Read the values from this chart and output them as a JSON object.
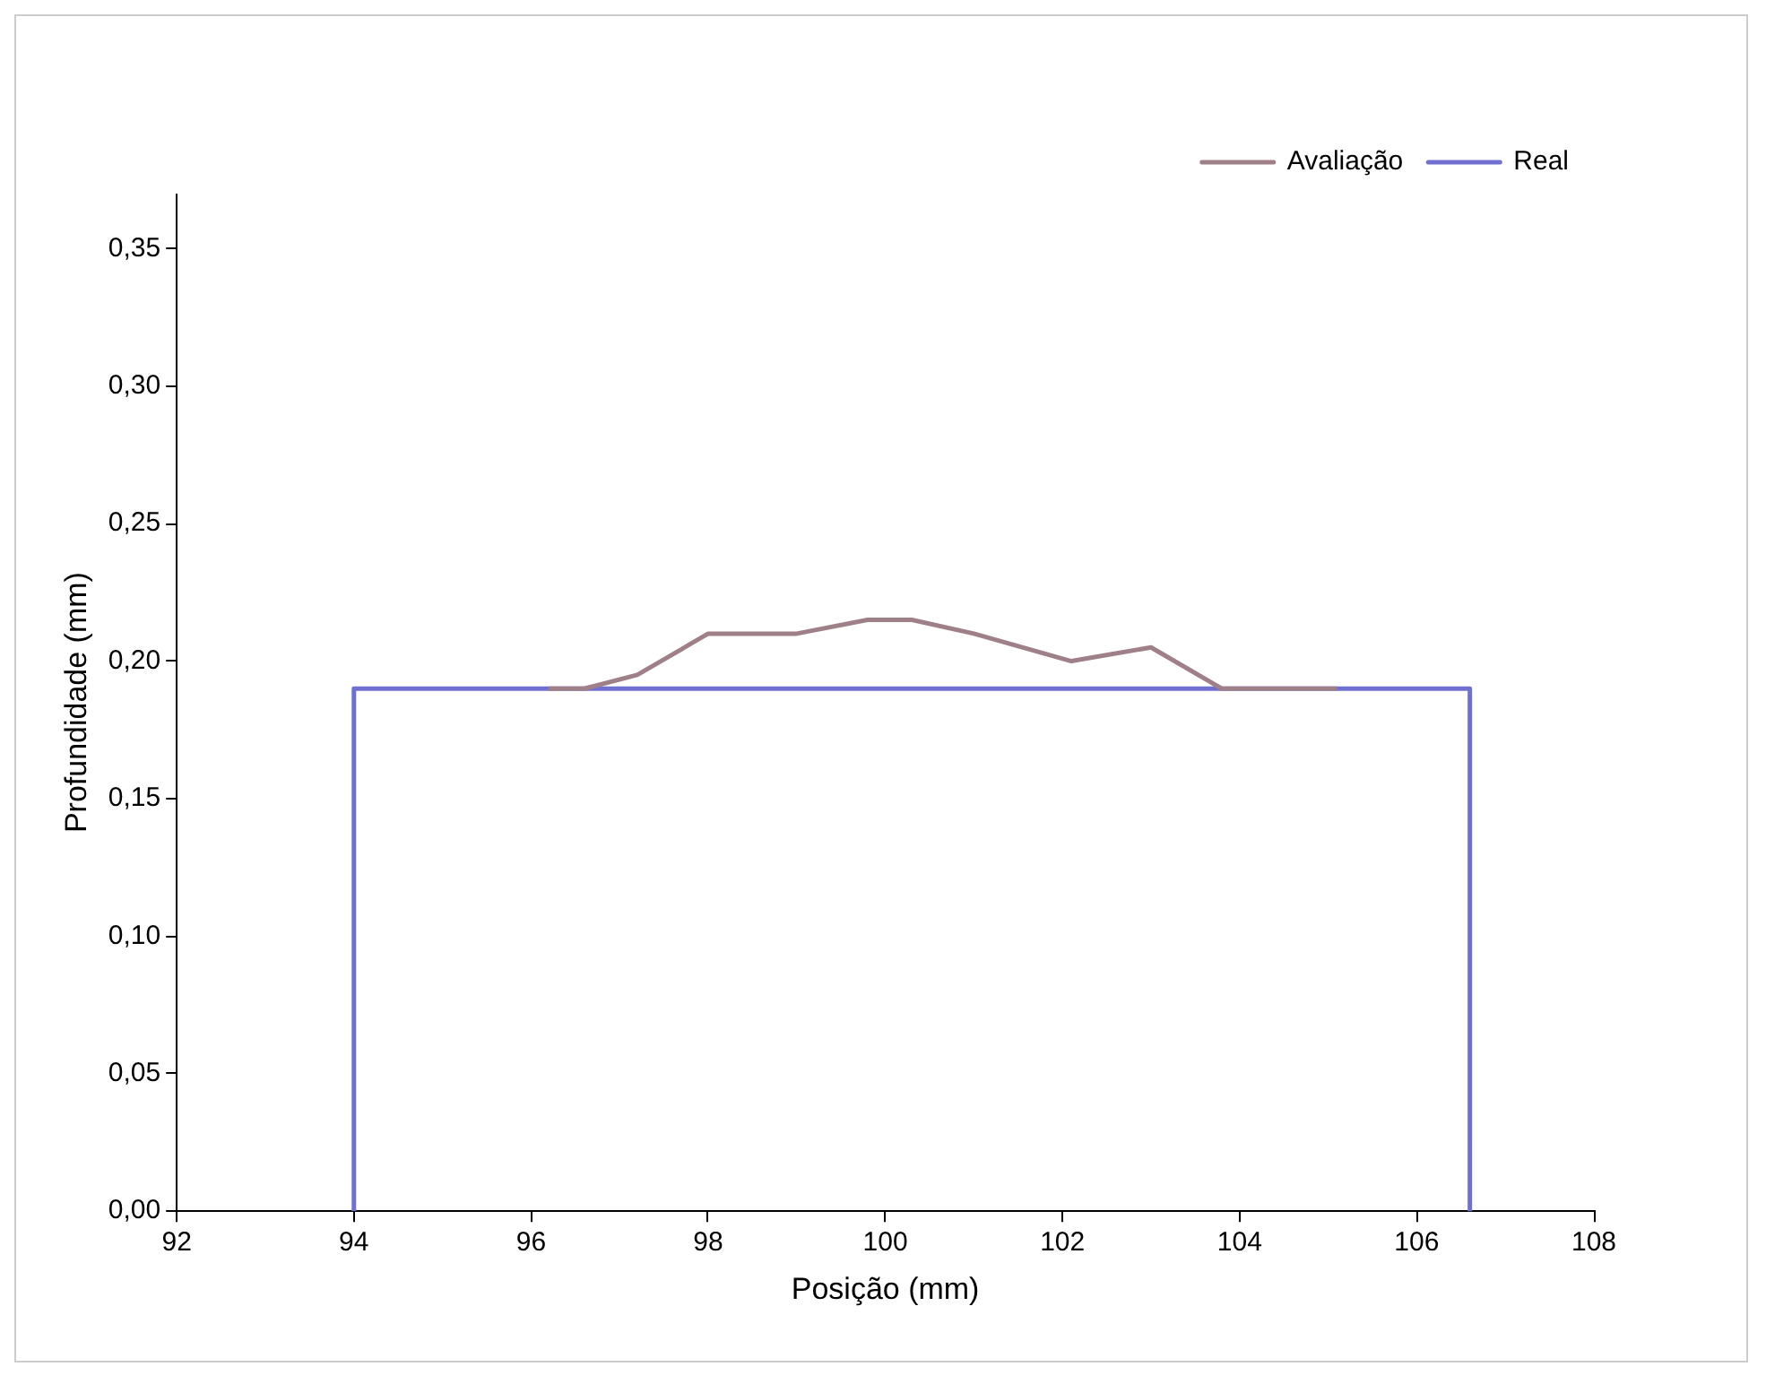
{
  "chart_data": {
    "type": "line",
    "xlabel": "Posição (mm)",
    "ylabel": "Profundidade (mm)",
    "xlim": [
      92,
      108
    ],
    "xticks": [
      92,
      94,
      96,
      98,
      100,
      102,
      104,
      106,
      108
    ],
    "ylim": [
      0,
      0.37
    ],
    "yticks": [
      {
        "value": 0,
        "label": "0,00"
      },
      {
        "value": 0.05,
        "label": "0,05"
      },
      {
        "value": 0.1,
        "label": "0,10"
      },
      {
        "value": 0.15,
        "label": "0,15"
      },
      {
        "value": 0.2,
        "label": "0,20"
      },
      {
        "value": 0.25,
        "label": "0,25"
      },
      {
        "value": 0.3,
        "label": "0,30"
      },
      {
        "value": 0.35,
        "label": "0,35"
      }
    ],
    "legend": "top right",
    "grid": false,
    "series": [
      {
        "name": "Avaliação",
        "color": "#a08088",
        "x": [
          96.2,
          96.6,
          97.2,
          98,
          99,
          99.8,
          100.3,
          101,
          102.1,
          103,
          103.8,
          105.1
        ],
        "values": [
          0.19,
          0.19,
          0.195,
          0.21,
          0.21,
          0.215,
          0.215,
          0.21,
          0.2,
          0.205,
          0.19,
          0.19
        ]
      },
      {
        "name": "Real",
        "color": "#7070d0",
        "x": [
          94,
          94,
          106.6,
          106.6
        ],
        "values": [
          0,
          0.19,
          0.19,
          0
        ]
      }
    ]
  }
}
